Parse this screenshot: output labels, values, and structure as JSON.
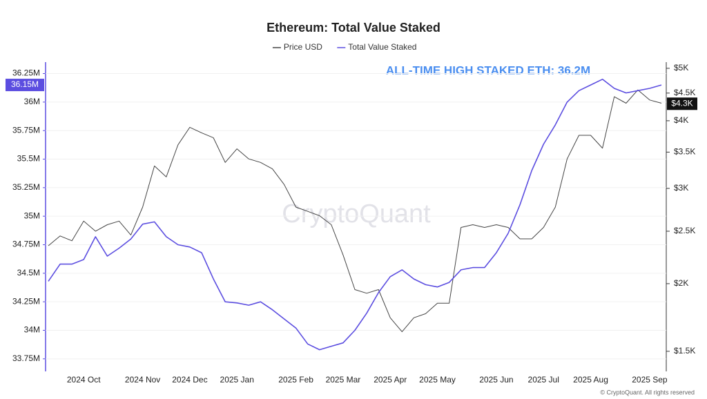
{
  "chart_data": {
    "type": "line",
    "title": "Ethereum: Total Value Staked",
    "annotation": "ALL-TIME HIGH STAKED ETH: 36.2M",
    "watermark": "CryptoQuant",
    "footer": "© CryptoQuant. All rights reserved",
    "grid": true,
    "legend": "top",
    "y2log": true,
    "categories": [
      null,
      null,
      null,
      "2024 Oct",
      null,
      null,
      null,
      null,
      "2024 Nov",
      null,
      null,
      null,
      "2024 Dec",
      null,
      null,
      null,
      "2025 Jan",
      null,
      null,
      null,
      null,
      "2025 Feb",
      null,
      null,
      null,
      "2025 Mar",
      null,
      null,
      null,
      "2025 Apr",
      null,
      null,
      null,
      "2025 May",
      null,
      null,
      null,
      null,
      "2025 Jun",
      null,
      null,
      null,
      "2025 Jul",
      null,
      null,
      null,
      "2025 Aug",
      null,
      null,
      null,
      null,
      "2025 Sep",
      null
    ],
    "ylim": [
      33640000,
      36350000
    ],
    "yticks": [
      {
        "value": 33750000,
        "label": "33.75M"
      },
      {
        "value": 34000000,
        "label": "34M"
      },
      {
        "value": 34250000,
        "label": "34.25M"
      },
      {
        "value": 34500000,
        "label": "34.5M"
      },
      {
        "value": 34750000,
        "label": "34.75M"
      },
      {
        "value": 35000000,
        "label": "35M"
      },
      {
        "value": 35250000,
        "label": "35.25M"
      },
      {
        "value": 35500000,
        "label": "35.5M"
      },
      {
        "value": 35750000,
        "label": "35.75M"
      },
      {
        "value": 36000000,
        "label": "36M"
      },
      {
        "value": 36250000,
        "label": "36.25M"
      }
    ],
    "y2lim": [
      1377,
      5133
    ],
    "y2ticks": [
      {
        "value": 1500,
        "label": "$1.5K"
      },
      {
        "value": 2000,
        "label": "$2K"
      },
      {
        "value": 2500,
        "label": "$2.5K"
      },
      {
        "value": 3000,
        "label": "$3K"
      },
      {
        "value": 3500,
        "label": "$3.5K"
      },
      {
        "value": 4000,
        "label": "$4K"
      },
      {
        "value": 4500,
        "label": "$4.5K"
      },
      {
        "value": 5000,
        "label": "$5K"
      }
    ],
    "series": [
      {
        "name": "Price USD",
        "color": "#444444",
        "axis": "y2",
        "current": {
          "value": 4300,
          "label": "$4.3K"
        },
        "values": [
          2350,
          2450,
          2400,
          2610,
          2500,
          2570,
          2610,
          2460,
          2770,
          3300,
          3150,
          3610,
          3890,
          3800,
          3720,
          3350,
          3550,
          3400,
          3350,
          3260,
          3050,
          2770,
          2720,
          2670,
          2570,
          2260,
          1950,
          1920,
          1950,
          1730,
          1630,
          1730,
          1760,
          1840,
          1840,
          2540,
          2570,
          2540,
          2570,
          2540,
          2420,
          2420,
          2540,
          2770,
          3400,
          3760,
          3760,
          3560,
          4430,
          4310,
          4560,
          4370,
          4310
        ]
      },
      {
        "name": "Total Value Staked",
        "color": "#5b4de0",
        "current": {
          "value": 36150000,
          "label": "36.15M"
        },
        "values": [
          34430000,
          34580000,
          34580000,
          34620000,
          34820000,
          34650000,
          34720000,
          34800000,
          34930000,
          34950000,
          34820000,
          34750000,
          34730000,
          34680000,
          34450000,
          34250000,
          34240000,
          34220000,
          34250000,
          34180000,
          34100000,
          34020000,
          33880000,
          33830000,
          33860000,
          33890000,
          34000000,
          34150000,
          34330000,
          34470000,
          34530000,
          34450000,
          34400000,
          34380000,
          34420000,
          34530000,
          34550000,
          34550000,
          34680000,
          34850000,
          35100000,
          35400000,
          35630000,
          35800000,
          36000000,
          36100000,
          36150000,
          36200000,
          36120000,
          36080000,
          36100000,
          36120000,
          36150000
        ]
      }
    ]
  }
}
